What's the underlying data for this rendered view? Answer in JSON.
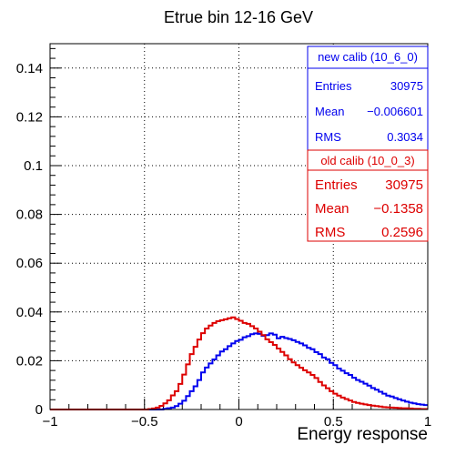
{
  "chart_data": {
    "type": "line",
    "title": "Etrue bin 12-16 GeV",
    "xlabel": "Energy response",
    "ylabel": "",
    "xlim": [
      -1,
      1
    ],
    "ylim": [
      0,
      0.15
    ],
    "x_ticks": [
      "−1",
      "−0.5",
      "0",
      "0.5",
      "1"
    ],
    "y_ticks": [
      "0",
      "0.02",
      "0.04",
      "0.06",
      "0.08",
      "0.1",
      "0.12",
      "0.14"
    ],
    "grid": true,
    "legend_position": "top-right",
    "bin_edges_start": -1.0,
    "bin_width": 0.02,
    "series": [
      {
        "name": "new calib (10_6_0)",
        "color": "#0000ee",
        "stats": {
          "entries_label": "Entries",
          "entries": "30975",
          "mean_label": "Mean",
          "mean": "−0.006601",
          "rms_label": "RMS",
          "rms": "0.3034"
        },
        "values": [
          0,
          0,
          0,
          0,
          0,
          0,
          0,
          0,
          0,
          0,
          0,
          0,
          0,
          0,
          0,
          0,
          0,
          0,
          0,
          0,
          0,
          0,
          0,
          0,
          0,
          0,
          0,
          0,
          0,
          0,
          0.0003,
          0.0005,
          0.0008,
          0.0014,
          0.0024,
          0.0036,
          0.0055,
          0.0075,
          0.0095,
          0.0121,
          0.0152,
          0.0172,
          0.0189,
          0.0205,
          0.0222,
          0.0238,
          0.0247,
          0.026,
          0.0271,
          0.0281,
          0.0286,
          0.0296,
          0.0301,
          0.0309,
          0.0312,
          0.031,
          0.0302,
          0.0305,
          0.0312,
          0.0307,
          0.0292,
          0.0298,
          0.0293,
          0.0289,
          0.0284,
          0.0277,
          0.0271,
          0.0263,
          0.0253,
          0.0247,
          0.0235,
          0.0227,
          0.0213,
          0.0206,
          0.0191,
          0.0182,
          0.0168,
          0.0159,
          0.0149,
          0.0142,
          0.013,
          0.0121,
          0.0114,
          0.0106,
          0.0098,
          0.0088,
          0.0081,
          0.0073,
          0.0065,
          0.0057,
          0.0053,
          0.0047,
          0.0042,
          0.0037,
          0.0032,
          0.0028,
          0.0025,
          0.0022,
          0.002,
          0.0018
        ]
      },
      {
        "name": "old calib (10_0_3)",
        "color": "#dd0000",
        "stats": {
          "entries_label": "Entries",
          "entries": "30975",
          "mean_label": "Mean",
          "mean": "−0.1358",
          "rms_label": "RMS",
          "rms": "0.2596"
        },
        "values": [
          0,
          0,
          0,
          0,
          0,
          0,
          0,
          0,
          0,
          0,
          0,
          0,
          0,
          0,
          0,
          0,
          0,
          0,
          0,
          0,
          0,
          0,
          0,
          0,
          0,
          0,
          0.0002,
          0.0004,
          0.0008,
          0.0015,
          0.0025,
          0.0038,
          0.0058,
          0.0075,
          0.0105,
          0.0143,
          0.0185,
          0.0227,
          0.0257,
          0.0287,
          0.0313,
          0.0332,
          0.0344,
          0.0355,
          0.0362,
          0.0366,
          0.037,
          0.0374,
          0.0378,
          0.0371,
          0.0364,
          0.0355,
          0.0351,
          0.0342,
          0.0332,
          0.0319,
          0.0305,
          0.0288,
          0.0276,
          0.0265,
          0.025,
          0.0236,
          0.0222,
          0.0206,
          0.0193,
          0.0182,
          0.0171,
          0.0161,
          0.0152,
          0.0142,
          0.0129,
          0.0113,
          0.0099,
          0.0087,
          0.0075,
          0.0065,
          0.0057,
          0.0049,
          0.0043,
          0.0037,
          0.0031,
          0.0027,
          0.0024,
          0.0021,
          0.0018,
          0.0016,
          0.0014,
          0.0012,
          0.001,
          0.0009,
          0.0008,
          0.0007,
          0.0006,
          0.0005,
          0.0005,
          0.0004,
          0.0003,
          0.0003,
          0.0002,
          0.0002
        ]
      }
    ]
  }
}
